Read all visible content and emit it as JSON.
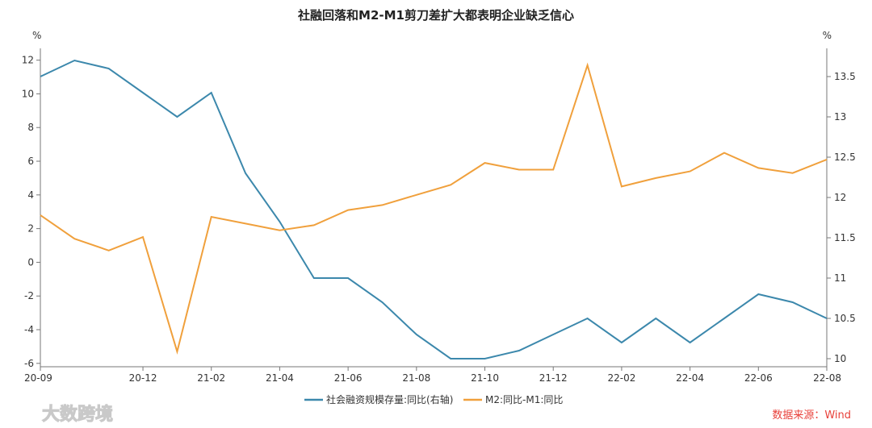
{
  "chart_data": {
    "type": "line",
    "title": "社融回落和M2-M1剪刀差扩大都表明企业缺乏信心",
    "left_axis": {
      "unit": "%",
      "ticks": [
        -6,
        -4,
        -2,
        0,
        2,
        4,
        6,
        8,
        10,
        12
      ],
      "range": [
        -6.2,
        12.7
      ]
    },
    "right_axis": {
      "unit": "%",
      "ticks": [
        10,
        10.5,
        11,
        11.5,
        12,
        12.5,
        13,
        13.5
      ],
      "range": [
        9.9,
        13.85
      ]
    },
    "x_tick_labels": [
      "20-09",
      "20-12",
      "21-02",
      "21-04",
      "21-06",
      "21-08",
      "21-10",
      "21-12",
      "22-02",
      "22-04",
      "22-06",
      "22-08"
    ],
    "x_tick_indices": [
      0,
      3,
      5,
      7,
      9,
      11,
      13,
      15,
      17,
      19,
      21,
      23
    ],
    "categories": [
      "20-09",
      "20-10",
      "20-11",
      "20-12",
      "21-01",
      "21-02",
      "21-03",
      "21-04",
      "21-05",
      "21-06",
      "21-07",
      "21-08",
      "21-09",
      "21-10",
      "21-11",
      "21-12",
      "22-01",
      "22-02",
      "22-03",
      "22-04",
      "22-05",
      "22-06",
      "22-07",
      "22-08"
    ],
    "series": [
      {
        "name": "社会融资规模存量:同比(右轴)",
        "axis": "right",
        "color": "#3c88ac",
        "values": [
          13.5,
          13.7,
          13.6,
          13.3,
          13.0,
          13.3,
          12.3,
          11.7,
          11.0,
          11.0,
          10.7,
          10.3,
          10.0,
          10.0,
          10.1,
          10.3,
          10.5,
          10.2,
          10.5,
          10.2,
          10.5,
          10.8,
          10.7,
          10.5
        ]
      },
      {
        "name": "M2:同比-M1:同比",
        "axis": "left",
        "color": "#f0a03c",
        "values": [
          2.8,
          1.4,
          0.7,
          1.5,
          -5.3,
          2.7,
          2.3,
          1.9,
          2.2,
          3.1,
          3.4,
          4.0,
          4.6,
          5.9,
          5.5,
          5.5,
          11.7,
          4.5,
          5.0,
          5.4,
          6.5,
          5.6,
          5.3,
          6.1
        ]
      }
    ],
    "legend": {
      "position": "bottom"
    },
    "grid": false
  },
  "source_note": "数据来源：Wind",
  "watermark": "大数跨境"
}
